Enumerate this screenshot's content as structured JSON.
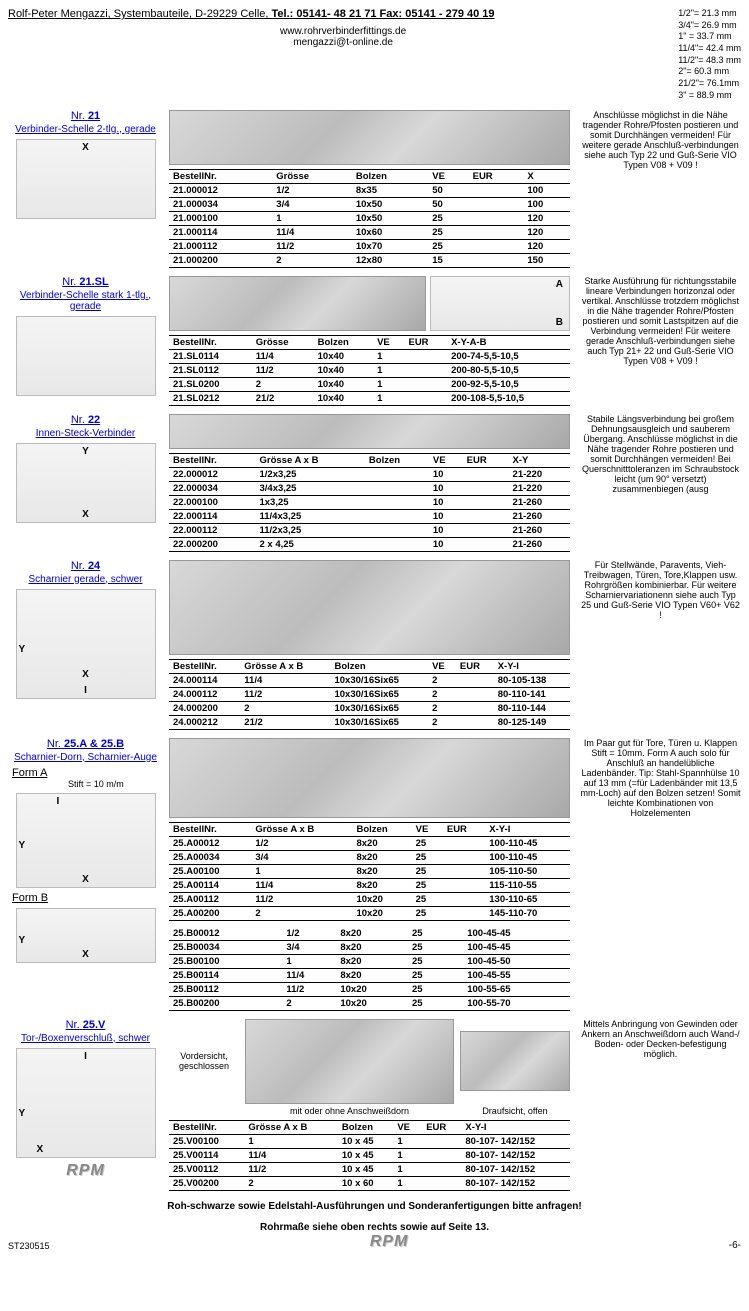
{
  "header": {
    "company": "Rolf-Peter Mengazzi, Systembauteile, D-29229 Celle, ",
    "tel_label": "Tel.: 05141- 48 21 71  Fax: 05141 - 279 40 19",
    "website": "www.rohrverbinderfittings.de",
    "email": "mengazzi@t-online.de"
  },
  "sizes": [
    "1/2\"= 21.3 mm",
    "3/4\"= 26.9 mm",
    "1\" = 33.7 mm",
    "11/4\"= 42.4 mm",
    "11/2\"= 48.3 mm",
    "2\"= 60.3 mm",
    "21/2\"= 76.1mm",
    "3\" = 88.9 mm"
  ],
  "sections": {
    "s21": {
      "nr_prefix": "Nr.",
      "nr": "21",
      "subtitle": "Verbinder-Schelle 2-tlg., gerade",
      "cols": [
        "BestellNr.",
        "Grösse",
        "Bolzen",
        "VE",
        "EUR",
        "X"
      ],
      "rows": [
        [
          "21.000012",
          "1/2",
          "8x35",
          "50",
          "",
          "100"
        ],
        [
          "21.000034",
          "3/4",
          "10x50",
          "50",
          "",
          "100"
        ],
        [
          "21.000100",
          "1",
          "10x50",
          "25",
          "",
          "120"
        ],
        [
          "21.000114",
          "11/4",
          "10x60",
          "25",
          "",
          "120"
        ],
        [
          "21.000112",
          "11/2",
          "10x70",
          "25",
          "",
          "120"
        ],
        [
          "21.000200",
          "2",
          "12x80",
          "15",
          "",
          "150"
        ]
      ],
      "note": "Anschlüsse möglichst in die Nähe tragender Rohre/Pfosten postieren und somit Durchhängen vermeiden! Für weitere gerade Anschluß-verbindungen siehe auch Typ 22 und Guß-Serie VIO Typen  V08 + V09 !"
    },
    "s21sl": {
      "nr_prefix": "Nr.",
      "nr": "21.SL",
      "subtitle": "Verbinder-Schelle stark 1-tlg., gerade",
      "cols": [
        "BestellNr.",
        "Grösse",
        "Bolzen",
        "VE",
        "EUR",
        "X-Y-A-B"
      ],
      "rows": [
        [
          "21.SL0114",
          "11/4",
          "10x40",
          "1",
          "",
          "200-74-5,5-10,5"
        ],
        [
          "21.SL0112",
          "11/2",
          "10x40",
          "1",
          "",
          "200-80-5,5-10,5"
        ],
        [
          "21.SL0200",
          "2",
          "10x40",
          "1",
          "",
          "200-92-5,5-10,5"
        ],
        [
          "21.SL0212",
          "21/2",
          "10x40",
          "1",
          "",
          "200-108-5,5-10,5"
        ]
      ],
      "note": "Starke Ausführung für richtungsstabile lineare Verbindungen horizonzal oder vertikal. Anschlüsse trotzdem möglichst in die Nähe tragender Rohre/Pfosten postieren und somit Lastspitzen auf die Verbindung vermeiden! Für weitere gerade Anschluß-verbindungen siehe auch Typ 21+ 22 und Guß-Serie VIO Typen  V08 + V09 !"
    },
    "s22": {
      "nr_prefix": "Nr.",
      "nr": "22",
      "subtitle": "Innen-Steck-Verbinder",
      "cols": [
        "BestellNr.",
        "Grösse A  x  B",
        "Bolzen",
        "VE",
        "EUR",
        "X-Y"
      ],
      "rows": [
        [
          "22.000012",
          "1/2x3,25",
          "",
          "10",
          "",
          "21-220"
        ],
        [
          "22.000034",
          "3/4x3,25",
          "",
          "10",
          "",
          "21-220"
        ],
        [
          "22.000100",
          "1x3,25",
          "",
          "10",
          "",
          "21-260"
        ],
        [
          "22.000114",
          "11/4x3,25",
          "",
          "10",
          "",
          "21-260"
        ],
        [
          "22.000112",
          "11/2x3,25",
          "",
          "10",
          "",
          "21-260"
        ],
        [
          "22.000200",
          "2 x 4,25",
          "",
          "10",
          "",
          "21-260"
        ]
      ],
      "note": "Stabile Längsverbindung bei großem Dehnungsausgleich und sauberem Übergang. Anschlüsse möglichst in die Nähe tragender Rohre postieren und somit Durchhängen vermeiden! Bei Querschnitttoleranzen im Schraubstock leicht (um 90° versetzt) zusammenbiegen (ausg"
    },
    "s24": {
      "nr_prefix": "Nr.",
      "nr": "24",
      "subtitle": "Scharnier gerade, schwer",
      "cols": [
        "BestellNr.",
        "Grösse A  x  B",
        "Bolzen",
        "VE",
        "EUR",
        "X-Y-I"
      ],
      "rows": [
        [
          "24.000114",
          "11/4",
          "10x30/16Six65",
          "2",
          "",
          "80-105-138"
        ],
        [
          "24.000112",
          "11/2",
          "10x30/16Six65",
          "2",
          "",
          "80-110-141"
        ],
        [
          "24.000200",
          "2",
          "10x30/16Six65",
          "2",
          "",
          "80-110-144"
        ],
        [
          "24.000212",
          "21/2",
          "10x30/16Six65",
          "2",
          "",
          "80-125-149"
        ]
      ],
      "note": "Für Stellwände, Paravents, Vieh-Treibwagen, Türen, Tore,Klappen usw. Rohrgrößen kombinierbar. Für weitere Scharniervariationenn siehe auch Typ 25 und Guß-Serie VIO Typen  V60+ V62 !"
    },
    "s25ab": {
      "nr_prefix": "Nr.",
      "nr": "25.A & 25.B",
      "subtitle": "Scharnier-Dorn, Scharnier-Auge",
      "stift": "Stift = 10 m/m",
      "formA": "Form A",
      "formB": "Form B",
      "cols": [
        "BestellNr.",
        "Grösse A  x  B",
        "Bolzen",
        "VE",
        "EUR",
        "X-Y-I"
      ],
      "rowsA": [
        [
          "25.A00012",
          "1/2",
          "8x20",
          "25",
          "",
          "100-110-45"
        ],
        [
          "25.A00034",
          "3/4",
          "8x20",
          "25",
          "",
          "100-110-45"
        ],
        [
          "25.A00100",
          "1",
          "8x20",
          "25",
          "",
          "105-110-50"
        ],
        [
          "25.A00114",
          "11/4",
          "8x20",
          "25",
          "",
          "115-110-55"
        ],
        [
          "25.A00112",
          "11/2",
          "10x20",
          "25",
          "",
          "130-110-65"
        ],
        [
          "25.A00200",
          "2",
          "10x20",
          "25",
          "",
          "145-110-70"
        ]
      ],
      "rowsB": [
        [
          "25.B00012",
          "1/2",
          "8x20",
          "25",
          "",
          "100-45-45"
        ],
        [
          "25.B00034",
          "3/4",
          "8x20",
          "25",
          "",
          "100-45-45"
        ],
        [
          "25.B00100",
          "1",
          "8x20",
          "25",
          "",
          "100-45-50"
        ],
        [
          "25.B00114",
          "11/4",
          "8x20",
          "25",
          "",
          "100-45-55"
        ],
        [
          "25.B00112",
          "11/2",
          "10x20",
          "25",
          "",
          "100-55-65"
        ],
        [
          "25.B00200",
          "2",
          "10x20",
          "25",
          "",
          "100-55-70"
        ]
      ],
      "note": "Im Paar gut für Tore, Türen u. Klappen Stift = 10mm. Form A auch solo für Anschluß an handelübliche Ladenbänder. Tip: Stahl-Spannhülse 10 auf 13 mm (=für Ladenbänder mit 13,5 mm-Loch) auf den Bolzen setzen! Somit leichte Kombinationen von Holzelementen"
    },
    "s25v": {
      "nr_prefix": "Nr.",
      "nr": "25.V",
      "subtitle": "Tor-/Boxenverschluß, schwer",
      "vord": "Vordersicht, geschlossen",
      "mit": "mit oder ohne Anschweißdorn",
      "drauf": "Draufsicht, offen",
      "cols": [
        "BestellNr.",
        "Grösse A  x  B",
        "Bolzen",
        "VE",
        "EUR",
        "X-Y-I"
      ],
      "rows": [
        [
          "25.V00100",
          "1",
          "10 x 45",
          "1",
          "",
          "80-107- 142/152"
        ],
        [
          "25.V00114",
          "11/4",
          "10 x 45",
          "1",
          "",
          "80-107- 142/152"
        ],
        [
          "25.V00112",
          "11/2",
          "10 x 45",
          "1",
          "",
          "80-107- 142/152"
        ],
        [
          "25.V00200",
          "2",
          "10 x 60",
          "1",
          "",
          "80-107- 142/152"
        ]
      ],
      "note": "Mittels Anbringung von Gewinden oder Ankern an Anschweißdorn auch Wand-/ Boden- oder Decken-befestigung möglich."
    }
  },
  "footer": {
    "line1": "Roh-schwarze sowie Edelstahl-Ausführungen und Sonderanfertigungen bitte anfragen!",
    "line2": "Rohrmaße siehe oben rechts sowie auf Seite 13.",
    "docid": "ST230515",
    "page": "-6-",
    "logo": "RPM"
  }
}
